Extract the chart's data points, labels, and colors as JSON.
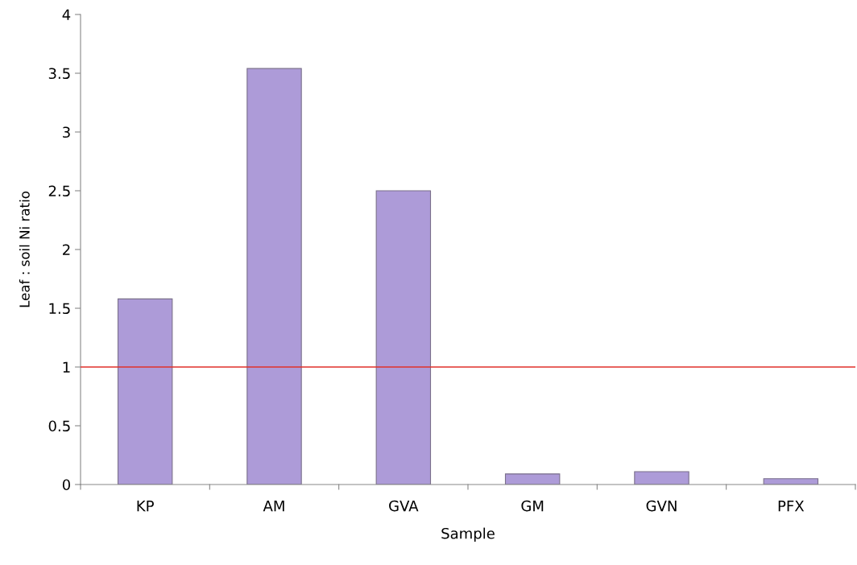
{
  "chart_data": {
    "type": "bar",
    "xlabel": "Sample",
    "ylabel": "Leaf : soil Ni ratio",
    "categories": [
      "KP",
      "AM",
      "GVA",
      "GM",
      "GVN",
      "PFX"
    ],
    "values": [
      1.58,
      3.54,
      2.5,
      0.09,
      0.11,
      0.05
    ],
    "color": "#ad9bd8",
    "ylim": [
      0,
      4
    ],
    "yticks": [
      0,
      0.5,
      1,
      1.5,
      2,
      2.5,
      3,
      3.5,
      4
    ],
    "grid": false,
    "ref_lines": [
      {
        "axis": "y",
        "value": 1,
        "color": "#e0302a",
        "line_style": "solid"
      }
    ]
  }
}
